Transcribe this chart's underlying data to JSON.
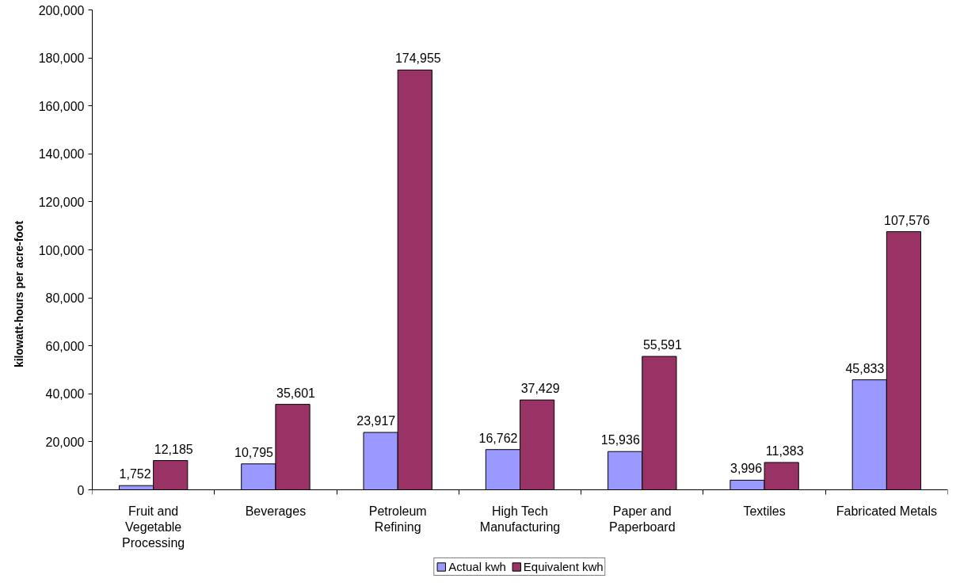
{
  "chart_data": {
    "type": "bar",
    "ylabel": "kilowatt-hours per acre-foot",
    "categories": [
      "Fruit and Vegetable Processing",
      "Beverages",
      "Petroleum Refining",
      "High Tech Manufacturing",
      "Paper and Paperboard",
      "Textiles",
      "Fabricated Metals"
    ],
    "series": [
      {
        "name": "Actual kwh",
        "color": "#9999ff",
        "values": [
          1752,
          10795,
          23917,
          16762,
          15936,
          3996,
          45833
        ],
        "value_labels": [
          "1,752",
          "10,795",
          "23,917",
          "16,762",
          "15,936",
          "3,996",
          "45,833"
        ]
      },
      {
        "name": "Equivalent kwh",
        "color": "#993366",
        "values": [
          12185,
          35601,
          174955,
          37429,
          55591,
          11383,
          107576
        ],
        "value_labels": [
          "12,185",
          "35,601",
          "174,955",
          "37,429",
          "55,591",
          "11,383",
          "107,576"
        ]
      }
    ],
    "ylim": [
      0,
      200000
    ],
    "yticks": [
      {
        "value": 0,
        "label": "0"
      },
      {
        "value": 20000,
        "label": "20,000"
      },
      {
        "value": 40000,
        "label": "40,000"
      },
      {
        "value": 60000,
        "label": "60,000"
      },
      {
        "value": 80000,
        "label": "80,000"
      },
      {
        "value": 100000,
        "label": "100,000"
      },
      {
        "value": 120000,
        "label": "120,000"
      },
      {
        "value": 140000,
        "label": "140,000"
      },
      {
        "value": 160000,
        "label": "160,000"
      },
      {
        "value": 180000,
        "label": "180,000"
      },
      {
        "value": 200000,
        "label": "200,000"
      }
    ],
    "legend": "bottom"
  }
}
